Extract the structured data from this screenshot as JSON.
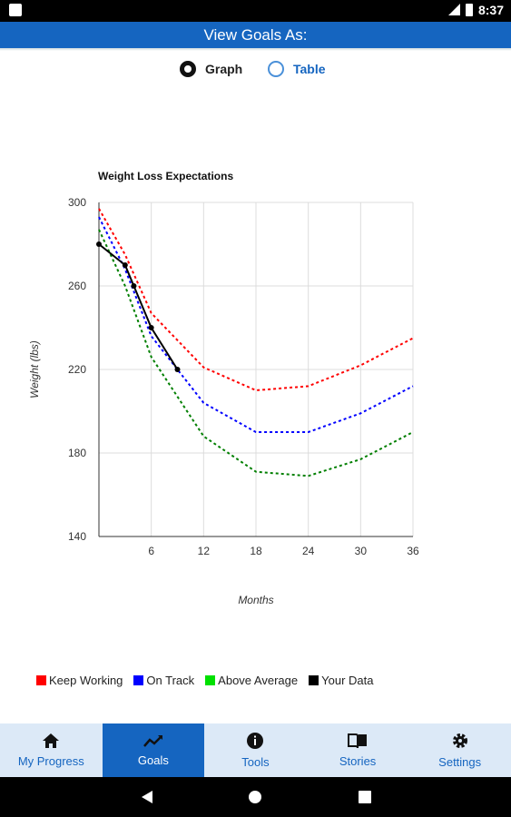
{
  "status": {
    "time": "8:37"
  },
  "header": {
    "title": "View Goals As:"
  },
  "view_toggle": {
    "graph_label": "Graph",
    "table_label": "Table",
    "selected": "Graph"
  },
  "legend": [
    {
      "label": "Keep Working",
      "color": "#ff0000"
    },
    {
      "label": "On Track",
      "color": "#0000ff"
    },
    {
      "label": "Above Average",
      "color": "#00e000"
    },
    {
      "label": "Your Data",
      "color": "#000000"
    }
  ],
  "chart_data": {
    "type": "line",
    "title": "Weight Loss Expectations",
    "xlabel": "Months",
    "ylabel": "Weight (lbs)",
    "xlim": [
      0,
      36
    ],
    "ylim": [
      140,
      300
    ],
    "xticks": [
      6,
      12,
      18,
      24,
      30,
      36
    ],
    "yticks": [
      140,
      180,
      220,
      260,
      300
    ],
    "grid": true,
    "series": [
      {
        "name": "Keep Working",
        "color": "#ff0000",
        "style": "dotted",
        "x": [
          0,
          3,
          6,
          12,
          18,
          24,
          30,
          36
        ],
        "y": [
          297,
          275,
          247,
          221,
          210,
          212,
          222,
          235
        ]
      },
      {
        "name": "On Track",
        "color": "#0000ff",
        "style": "dotted",
        "x": [
          0,
          3,
          6,
          12,
          18,
          24,
          30,
          36
        ],
        "y": [
          293,
          268,
          236,
          204,
          190,
          190,
          199,
          212
        ]
      },
      {
        "name": "Above Average",
        "color": "#007f00",
        "style": "dotted",
        "x": [
          0,
          3,
          6,
          12,
          18,
          24,
          30,
          36
        ],
        "y": [
          287,
          260,
          226,
          188,
          171,
          169,
          177,
          190
        ]
      },
      {
        "name": "Your Data",
        "color": "#000000",
        "style": "solid",
        "x": [
          0,
          3,
          4,
          6,
          9
        ],
        "y": [
          280,
          270,
          260,
          240,
          220
        ]
      }
    ]
  },
  "bottom_nav": [
    {
      "label": "My Progress",
      "icon": "home-icon",
      "active": false
    },
    {
      "label": "Goals",
      "icon": "trend-icon",
      "active": true
    },
    {
      "label": "Tools",
      "icon": "info-icon",
      "active": false
    },
    {
      "label": "Stories",
      "icon": "book-icon",
      "active": false
    },
    {
      "label": "Settings",
      "icon": "gear-icon",
      "active": false
    }
  ]
}
